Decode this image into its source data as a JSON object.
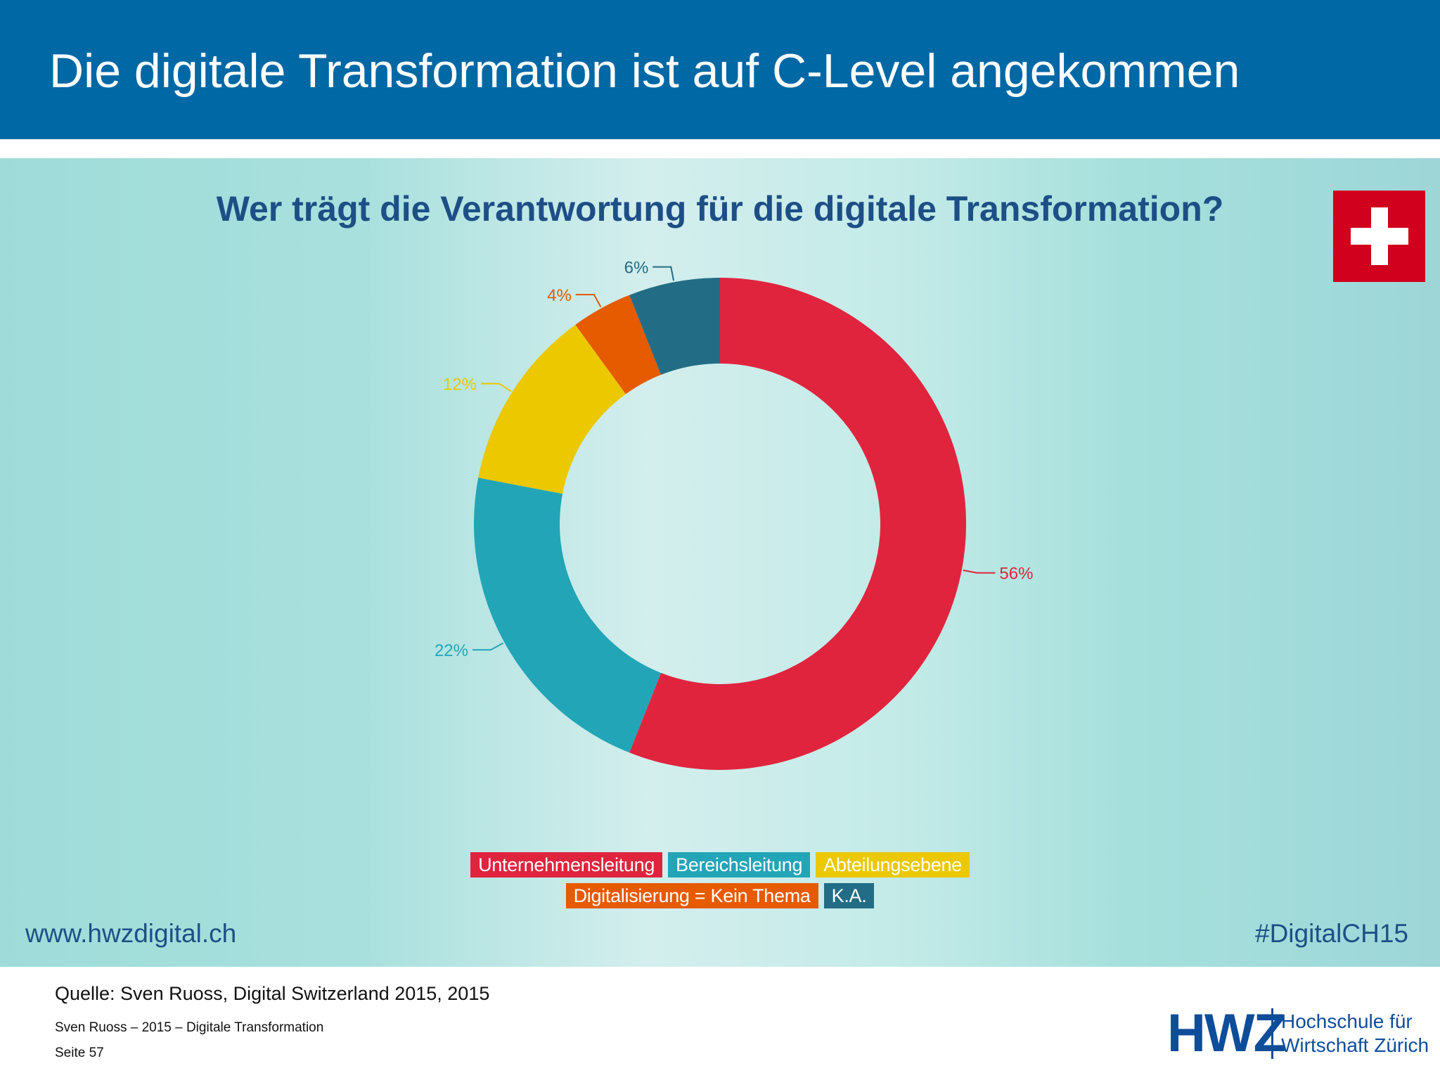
{
  "header": {
    "title": "Die digitale Transformation ist auf C-Level angekommen"
  },
  "chart_data": {
    "type": "pie",
    "donut": true,
    "title": "Wer trägt die Verantwortung für die digitale Transformation?",
    "categories": [
      "Unternehmensleitung",
      "Bereichsleitung",
      "Abteilungsebene",
      "Digitalisierung = Kein Thema",
      "K.A."
    ],
    "values": [
      56,
      22,
      12,
      4,
      6
    ],
    "data_labels": [
      "56%",
      "22%",
      "12%",
      "4%",
      "6%"
    ],
    "colors": [
      "#e0243e",
      "#22a5b7",
      "#ebc800",
      "#e65a00",
      "#226d85"
    ],
    "legend_position": "bottom"
  },
  "footer": {
    "url": "www.hwzdigital.ch",
    "hashtag": "#DigitalCH15",
    "source": "Quelle: Sven Ruoss, Digital Switzerland 2015, 2015",
    "meta": "Sven Ruoss – 2015 – Digitale Transformation",
    "page": "Seite 57"
  },
  "logo": {
    "mark": "HWZ",
    "line1": "Hochschule für",
    "line2": "Wirtschaft Zürich"
  }
}
